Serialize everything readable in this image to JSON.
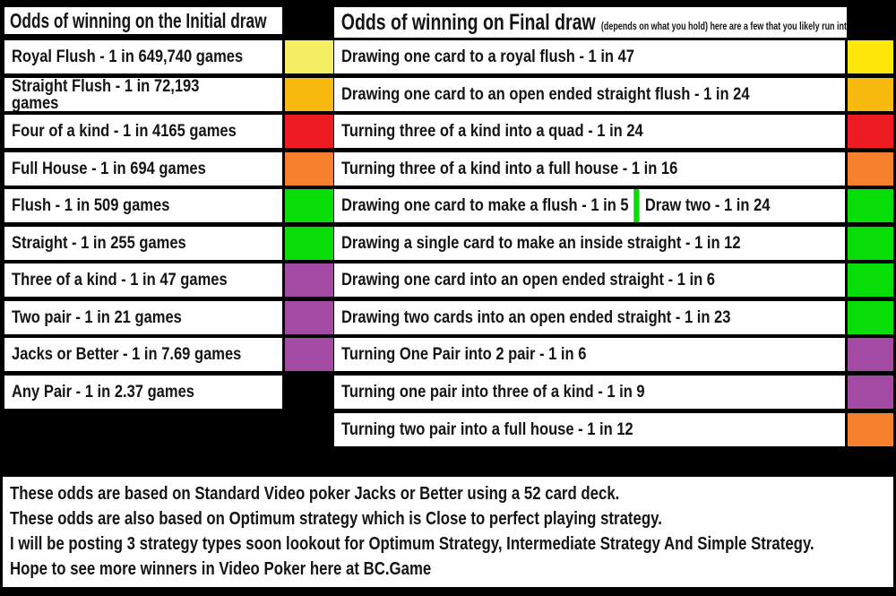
{
  "page": {
    "background": "#000000",
    "box_fill": "#FFFFFF",
    "text_color": "#141414"
  },
  "left_table": {
    "header": "Odds of winning on the Initial draw",
    "rows": [
      {
        "text": "Royal Flush  -  1 in 649,740 games",
        "color": "#F6EF62",
        "color_name": "pale-yellow"
      },
      {
        "text": "Straight Flush - 1 in 72,193 games",
        "color": "#F9BA10",
        "color_name": "gold"
      },
      {
        "text": "Four of a kind - 1 in 4165 games",
        "color": "#EE1B23",
        "color_name": "red"
      },
      {
        "text": "Full House - 1 in 694 games",
        "color": "#F6802B",
        "color_name": "orange"
      },
      {
        "text": "Flush - 1 in 509 games",
        "color": "#07DD07",
        "color_name": "green"
      },
      {
        "text": "Straight - 1 in 255 games",
        "color": "#07DD07",
        "color_name": "green"
      },
      {
        "text": "Three of a kind - 1 in 47 games",
        "color": "#A34AA4",
        "color_name": "purple"
      },
      {
        "text": "Two pair - 1 in 21 games",
        "color": "#A34AA4",
        "color_name": "purple"
      },
      {
        "text": "Jacks or Better - 1 in 7.69 games",
        "color": "#A34AA4",
        "color_name": "purple"
      },
      {
        "text": "Any Pair - 1 in 2.37 games",
        "color": null,
        "color_name": "none"
      }
    ]
  },
  "right_table": {
    "header_main": "Odds of winning on Final draw",
    "header_note": "(depends on what you hold) here are a few that you likely run into",
    "rows": [
      {
        "text": "Drawing one card to a royal flush - 1 in 47",
        "color": "#FFE60A",
        "color_name": "yellow"
      },
      {
        "text": "Drawing one card to an open ended straight flush - 1 in 24",
        "color": "#F9BA10",
        "color_name": "gold"
      },
      {
        "text": "Turning three of a kind into a quad  - 1 in 24",
        "color": "#EE1B23",
        "color_name": "red"
      },
      {
        "text": "Turning three of a kind into a full house - 1 in 16",
        "color": "#F6802B",
        "color_name": "orange"
      },
      {
        "text": "Drawing one card to make a flush - 1 in 5",
        "text2": "Draw two - 1 in 24",
        "divider_color": "#07DD07",
        "color": "#07DD07",
        "color_name": "green"
      },
      {
        "text": "Drawing a single card to make an inside straight  - 1 in 12",
        "color": "#07DD07",
        "color_name": "green"
      },
      {
        "text": "Drawing one card into an open ended straight  - 1 in 6",
        "color": "#07DD07",
        "color_name": "green"
      },
      {
        "text": "Drawing two cards into an open ended straight - 1 in 23",
        "color": "#07DD07",
        "color_name": "green"
      },
      {
        "text": "Turning One Pair into 2 pair - 1 in 6",
        "color": "#A34AA4",
        "color_name": "purple"
      },
      {
        "text": "Turning one pair into three of a kind - 1 in 9",
        "color": "#A34AA4",
        "color_name": "purple"
      },
      {
        "text": "Turning two pair into a full house - 1 in 12",
        "color": "#F6802B",
        "color_name": "orange"
      }
    ]
  },
  "footer": {
    "lines": [
      "These odds are based on Standard Video poker Jacks or Better using a 52 card deck.",
      "These odds are also based on Optimum strategy which is Close to perfect playing strategy.",
      "I will be posting 3 strategy types soon lookout for Optimum Strategy, Intermediate Strategy And Simple Strategy.",
      "Hope to see more winners in Video Poker here at BC.Game"
    ]
  }
}
